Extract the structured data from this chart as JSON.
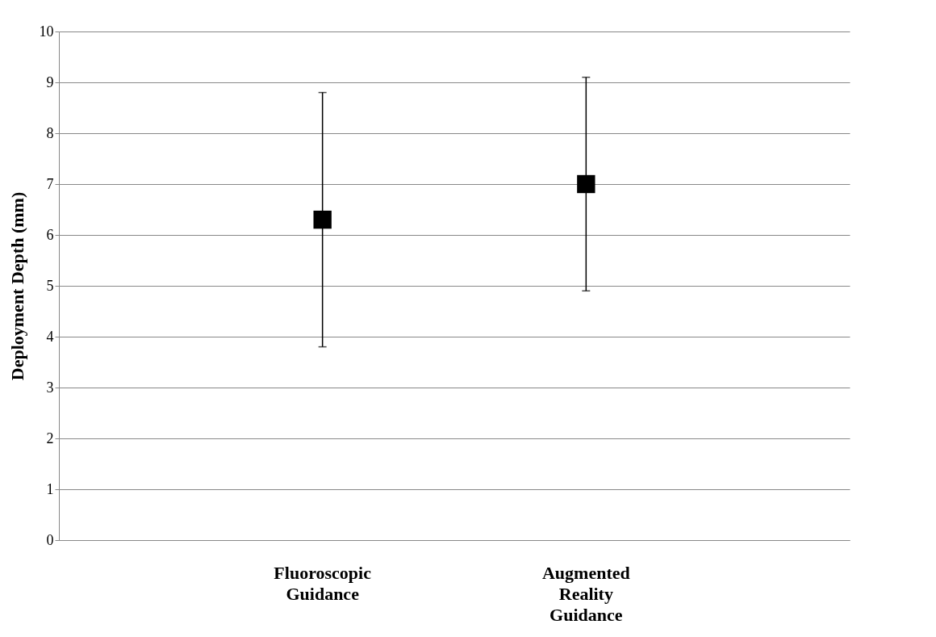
{
  "chart_data": {
    "type": "scatter",
    "ylabel": "Deployment Depth (mm)",
    "categories": [
      "Fluoroscopic Guidance",
      "Augmented Reality Guidance"
    ],
    "values": [
      6.3,
      7.0
    ],
    "errors": [
      [
        3.8,
        8.8
      ],
      [
        4.9,
        9.1
      ]
    ],
    "color": "#000000",
    "marker": "square",
    "ylim": [
      0,
      10
    ],
    "yticks": [
      0,
      1,
      2,
      3,
      4,
      5,
      6,
      7,
      8,
      9,
      10
    ],
    "grid": "y"
  }
}
